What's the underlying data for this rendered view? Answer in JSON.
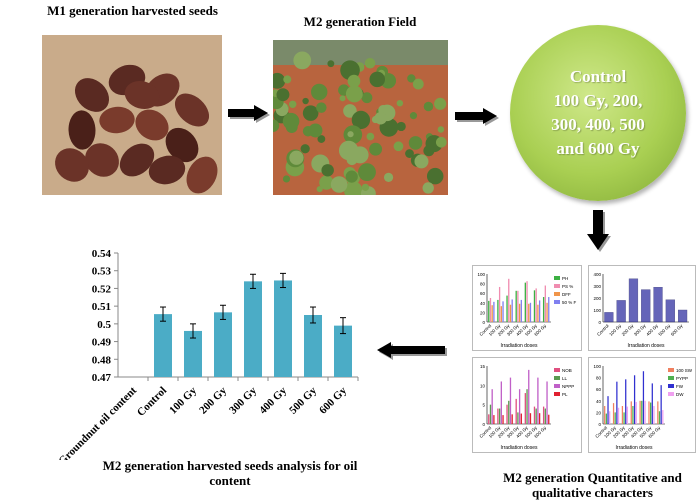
{
  "seeds_title": "M1 generation harvested seeds",
  "field_title": "M2 generation Field",
  "doses_circle": [
    "Control",
    "100 Gy, 200,",
    "300, 400, 500",
    "and 600 Gy"
  ],
  "oil_caption": "M2 generation harvested seeds analysis for oil content",
  "traits_caption": "M2 generation Quantitative and qualitative characters",
  "colors": {
    "bar": "#4bacc6",
    "circle": "#a9cf52",
    "arrow": "#000000"
  },
  "chart_data": [
    {
      "type": "bar",
      "categories": [
        "Groundnut oil content",
        "Control",
        "100 Gy",
        "200 Gy",
        "300 Gy",
        "400 Gy",
        "500 Gy",
        "600 Gy"
      ],
      "values": [
        null,
        0.5055,
        0.496,
        0.5065,
        0.524,
        0.5245,
        0.505,
        0.499
      ],
      "errors": [
        null,
        0.004,
        0.004,
        0.004,
        0.004,
        0.004,
        0.0045,
        0.0045
      ],
      "yticks": [
        "0.47",
        "0.48",
        "0.49",
        "0.5",
        "0.51",
        "0.52",
        "0.53",
        "0.54"
      ],
      "ylim": [
        0.47,
        0.54
      ]
    },
    {
      "type": "bar",
      "xlabel": "Irradiation doses",
      "categories": [
        "Control",
        "100 Gy",
        "200 Gy",
        "300 Gy",
        "400 Gy",
        "500 Gy",
        "600 Gy"
      ],
      "ylim": [
        0,
        100
      ],
      "yticks": [
        "0",
        "20",
        "40",
        "60",
        "80",
        "100"
      ],
      "series": [
        {
          "name": "PH",
          "color": "#3cb043",
          "values": [
            44,
            46,
            55,
            65,
            82,
            66,
            52
          ]
        },
        {
          "name": "PS %",
          "color": "#f08cb0",
          "values": [
            50,
            73,
            90,
            65,
            85,
            70,
            76
          ]
        },
        {
          "name": "DFF",
          "color": "#f0954a",
          "values": [
            35,
            33,
            36,
            38,
            38,
            36,
            40
          ]
        },
        {
          "name": "50 % F",
          "color": "#8080f0",
          "values": [
            42,
            43,
            47,
            46,
            40,
            45,
            52
          ]
        }
      ]
    },
    {
      "type": "bar",
      "xlabel": "Irradiation doses",
      "categories": [
        "Control",
        "100 Gy",
        "200 Gy",
        "300 Gy",
        "400 Gy",
        "500 Gy",
        "600 Gy"
      ],
      "ylim": [
        0,
        400
      ],
      "yticks": [
        "0",
        "100",
        "200",
        "300",
        "400"
      ],
      "series": [
        {
          "color": "#3f3fa8",
          "values": [
            80,
            180,
            360,
            270,
            290,
            185,
            100
          ]
        }
      ]
    },
    {
      "type": "bar",
      "xlabel": "Irradiation doses",
      "categories": [
        "Control",
        "100 Gy",
        "200 Gy",
        "300 Gy",
        "400 Gy",
        "500 Gy",
        "600 Gy"
      ],
      "ylim": [
        0,
        15
      ],
      "yticks": [
        "0",
        "5",
        "10",
        "15"
      ],
      "series": [
        {
          "name": "NOB",
          "color": "#e05080",
          "values": [
            2.5,
            4,
            5,
            6.5,
            8,
            4.5,
            4.5
          ]
        },
        {
          "name": "LL",
          "color": "#5a9a50",
          "values": [
            5,
            4,
            6,
            3,
            9,
            4,
            4
          ]
        },
        {
          "name": "NPPP",
          "color": "#c060c8",
          "values": [
            9,
            11,
            12,
            9,
            14,
            12,
            11
          ]
        },
        {
          "name": "PL",
          "color": "#e02030",
          "values": [
            2.3,
            2.3,
            2.5,
            2.7,
            2.8,
            2.8,
            2.4
          ]
        }
      ]
    },
    {
      "type": "bar",
      "xlabel": "Irradiation doses",
      "categories": [
        "Control",
        "100 Gy",
        "200 Gy",
        "300 Gy",
        "400 Gy",
        "500 Gy",
        "600 Gy"
      ],
      "ylim": [
        0,
        100
      ],
      "yticks": [
        "0",
        "20",
        "40",
        "60",
        "80",
        "100"
      ],
      "series": [
        {
          "name": "100 SW",
          "color": "#f08060",
          "values": [
            31,
            36,
            31,
            39,
            40,
            39,
            39
          ]
        },
        {
          "name": "PYPP",
          "color": "#50b050",
          "values": [
            18,
            20,
            20,
            31,
            40,
            37,
            22
          ]
        },
        {
          "name": "FW",
          "color": "#3030d0",
          "values": [
            48,
            73,
            77,
            84,
            91,
            70,
            67
          ]
        },
        {
          "name": "DW",
          "color": "#f0a0f0",
          "values": [
            22,
            28,
            30,
            38,
            40,
            31,
            24
          ]
        }
      ]
    }
  ]
}
